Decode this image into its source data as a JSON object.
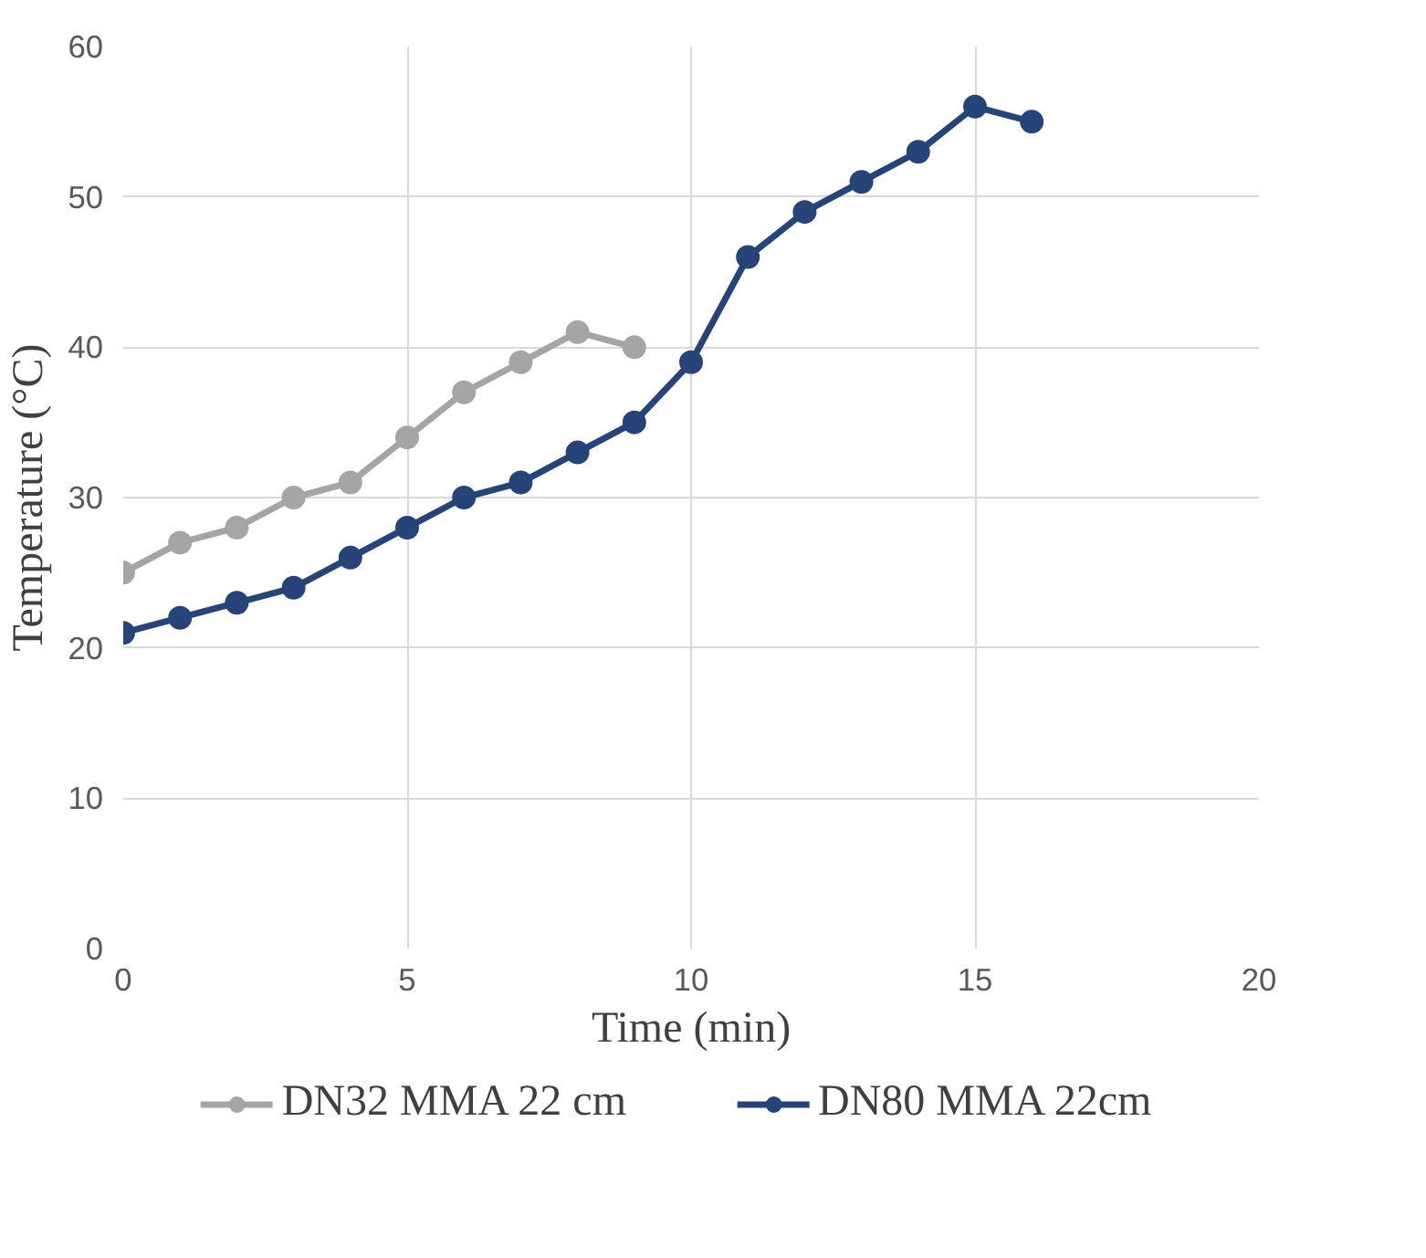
{
  "chart_data": {
    "type": "line",
    "xlabel": "Time (min)",
    "ylabel": "Temperature (°C)",
    "xlim": [
      0,
      20
    ],
    "xticks": [
      0,
      5,
      10,
      15,
      20
    ],
    "ylim": [
      0,
      60
    ],
    "yticks": [
      0,
      10,
      20,
      30,
      40,
      50,
      60
    ],
    "grid": true,
    "legend": "bottom",
    "marker": "circle",
    "line_style": "solid",
    "series": [
      {
        "name": "DN32 MMA 22 cm",
        "color": "#a5a5a5",
        "x": [
          0,
          1,
          2,
          3,
          4,
          5,
          6,
          7,
          8,
          9
        ],
        "values": [
          25,
          27,
          28,
          30,
          31,
          34,
          37,
          39,
          41,
          40
        ]
      },
      {
        "name": "DN80 MMA 22cm",
        "color": "#264478",
        "x": [
          0,
          1,
          2,
          3,
          4,
          5,
          6,
          7,
          8,
          9,
          10,
          11,
          12,
          13,
          14,
          15,
          16
        ],
        "values": [
          21,
          22,
          23,
          24,
          26,
          28,
          30,
          31,
          33,
          35,
          39,
          46,
          49,
          51,
          53,
          56,
          55
        ]
      }
    ]
  }
}
